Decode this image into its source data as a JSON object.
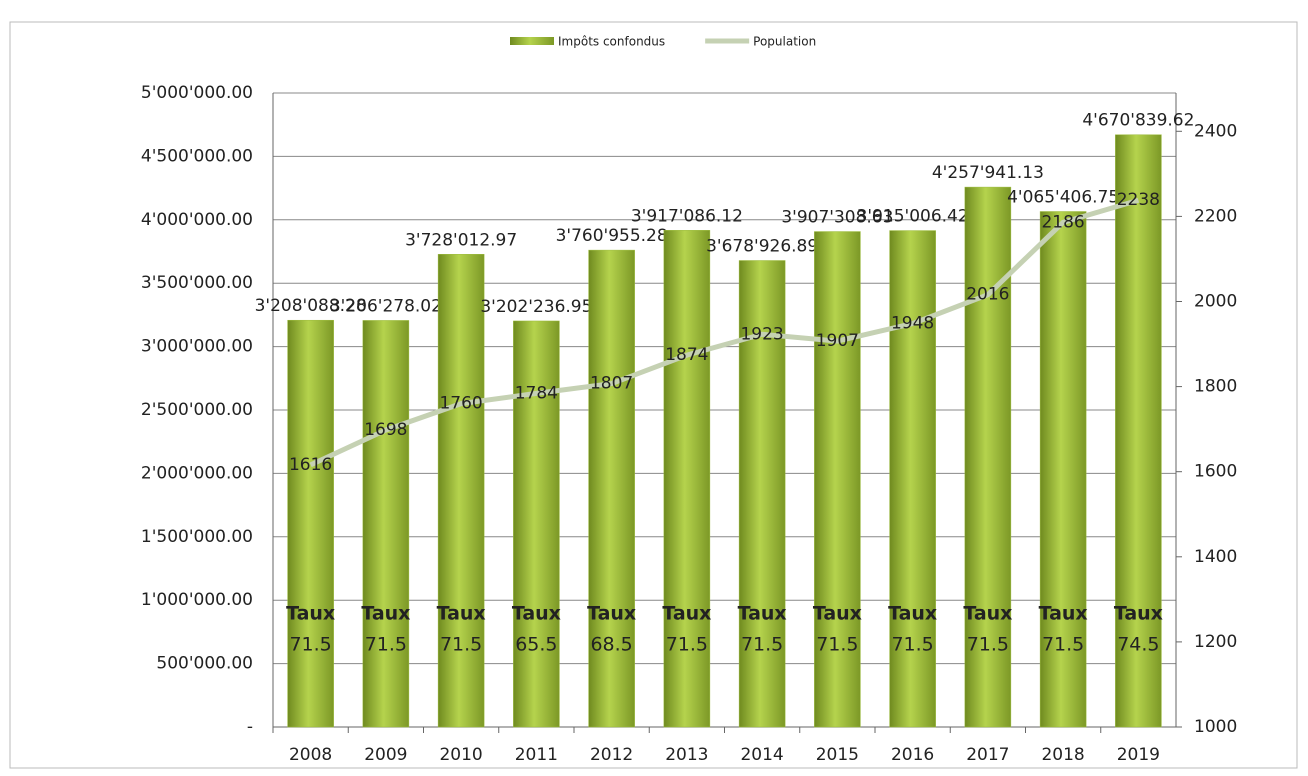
{
  "chart_data": {
    "type": "bar",
    "categories": [
      "2008",
      "2009",
      "2010",
      "2011",
      "2012",
      "2013",
      "2014",
      "2015",
      "2016",
      "2017",
      "2018",
      "2019"
    ],
    "series": [
      {
        "name": "Impôts confondus",
        "type": "bar",
        "color": "#9bbb3b",
        "values": [
          3208088.28,
          3206278.02,
          3728012.97,
          3202236.95,
          3760955.28,
          3917086.12,
          3678926.89,
          3907308.63,
          3915006.42,
          4257941.13,
          4065406.75,
          4670839.62
        ],
        "value_labels": [
          "3'208'088.28",
          "3'206'278.02",
          "3'728'012.97",
          "3'202'236.95",
          "3'760'955.28",
          "3'917'086.12",
          "3'678'926.89",
          "3'907'308.63",
          "3'915'006.42",
          "4'257'941.13",
          "4'065'406.75",
          "4'670'839.62"
        ]
      },
      {
        "name": "Population",
        "type": "line",
        "axis": "y2",
        "color": "#c5d1b3",
        "values": [
          1616,
          1698,
          1760,
          1784,
          1807,
          1874,
          1923,
          1907,
          1948,
          2016,
          2186,
          2238
        ]
      }
    ],
    "taux": {
      "label": "Taux",
      "values": [
        71.5,
        71.5,
        71.5,
        65.5,
        68.5,
        71.5,
        71.5,
        71.5,
        71.5,
        71.5,
        71.5,
        74.5
      ]
    },
    "ylim": [
      0,
      5000000
    ],
    "yticks": [
      {
        "value": 0,
        "label": "-"
      },
      {
        "value": 500000,
        "label": "500'000.00"
      },
      {
        "value": 1000000,
        "label": "1'000'000.00"
      },
      {
        "value": 1500000,
        "label": "1'500'000.00"
      },
      {
        "value": 2000000,
        "label": "2'000'000.00"
      },
      {
        "value": 2500000,
        "label": "2'500'000.00"
      },
      {
        "value": 3000000,
        "label": "3'000'000.00"
      },
      {
        "value": 3500000,
        "label": "3'500'000.00"
      },
      {
        "value": 4000000,
        "label": "4'000'000.00"
      },
      {
        "value": 4500000,
        "label": "4'500'000.00"
      },
      {
        "value": 5000000,
        "label": "5'000'000.00"
      }
    ],
    "y2lim": [
      1000,
      2490
    ],
    "y2ticks": [
      1000,
      1200,
      1400,
      1600,
      1800,
      2000,
      2200,
      2400
    ],
    "grid": true,
    "legend": "top"
  }
}
